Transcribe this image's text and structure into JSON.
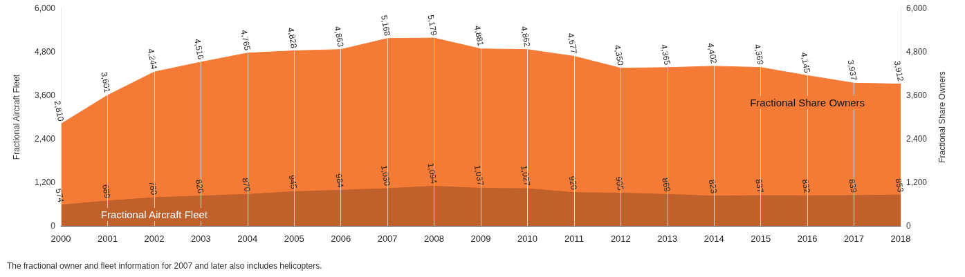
{
  "chart_data": {
    "type": "area",
    "ylabel": "Fractional Aircraft Fleet",
    "y2label": "Fractional Share Owners",
    "categories": [
      "2000",
      "2001",
      "2002",
      "2003",
      "2004",
      "2005",
      "2006",
      "2007",
      "2008",
      "2009",
      "2010",
      "2011",
      "2012",
      "2013",
      "2014",
      "2015",
      "2016",
      "2017",
      "2018"
    ],
    "series": [
      {
        "name": "Fractional Share Owners",
        "color": "#f47b36",
        "axis": "y2",
        "values": [
          2810,
          3601,
          4244,
          4516,
          4765,
          4828,
          4863,
          5168,
          5179,
          4881,
          4862,
          4677,
          4350,
          4365,
          4402,
          4369,
          4145,
          3937,
          3912
        ],
        "value_labels": [
          "2,810",
          "3,601",
          "4,244",
          "4,516",
          "4,765",
          "4,828",
          "4,863",
          "5,168",
          "5,179",
          "4,881",
          "4,862",
          "4,677",
          "4,350",
          "4,365",
          "4,402",
          "4,369",
          "4,145",
          "3,937",
          "3,912"
        ]
      },
      {
        "name": "Fractional Aircraft Fleet",
        "color": "#c0602a",
        "values": [
          574,
          689,
          780,
          826,
          870,
          945,
          984,
          1030,
          1094,
          1037,
          1027,
          920,
          905,
          869,
          823,
          837,
          832,
          839,
          853
        ],
        "value_labels": [
          "574",
          "689",
          "780",
          "826",
          "870",
          "945",
          "984",
          "1,030",
          "1,094",
          "1,037",
          "1,027",
          "920",
          "905",
          "869",
          "823",
          "837",
          "832",
          "839",
          "853"
        ]
      }
    ],
    "ylim": [
      0,
      6000
    ],
    "yticks": [
      0,
      {
        "value": 1200,
        "label": "1,200"
      },
      {
        "value": 2400,
        "label": "2,400"
      },
      {
        "value": 3600,
        "label": "3,600"
      },
      {
        "value": 4800,
        "label": "4,800"
      },
      {
        "value": 6000,
        "label": "6,000"
      }
    ],
    "y2lim": [
      0,
      6000
    ],
    "y2ticks": [
      0,
      {
        "value": 1200,
        "label": "1,200"
      },
      {
        "value": 2400,
        "label": "2,400"
      },
      {
        "value": 3600,
        "label": "3,600"
      },
      {
        "value": 4800,
        "label": "4,800"
      },
      {
        "value": 6000,
        "label": "6,000"
      }
    ],
    "grid": "x",
    "legend": false,
    "annotations": [
      "The fractional owner and fleet information for 2007 and later also includes helicopters."
    ]
  }
}
